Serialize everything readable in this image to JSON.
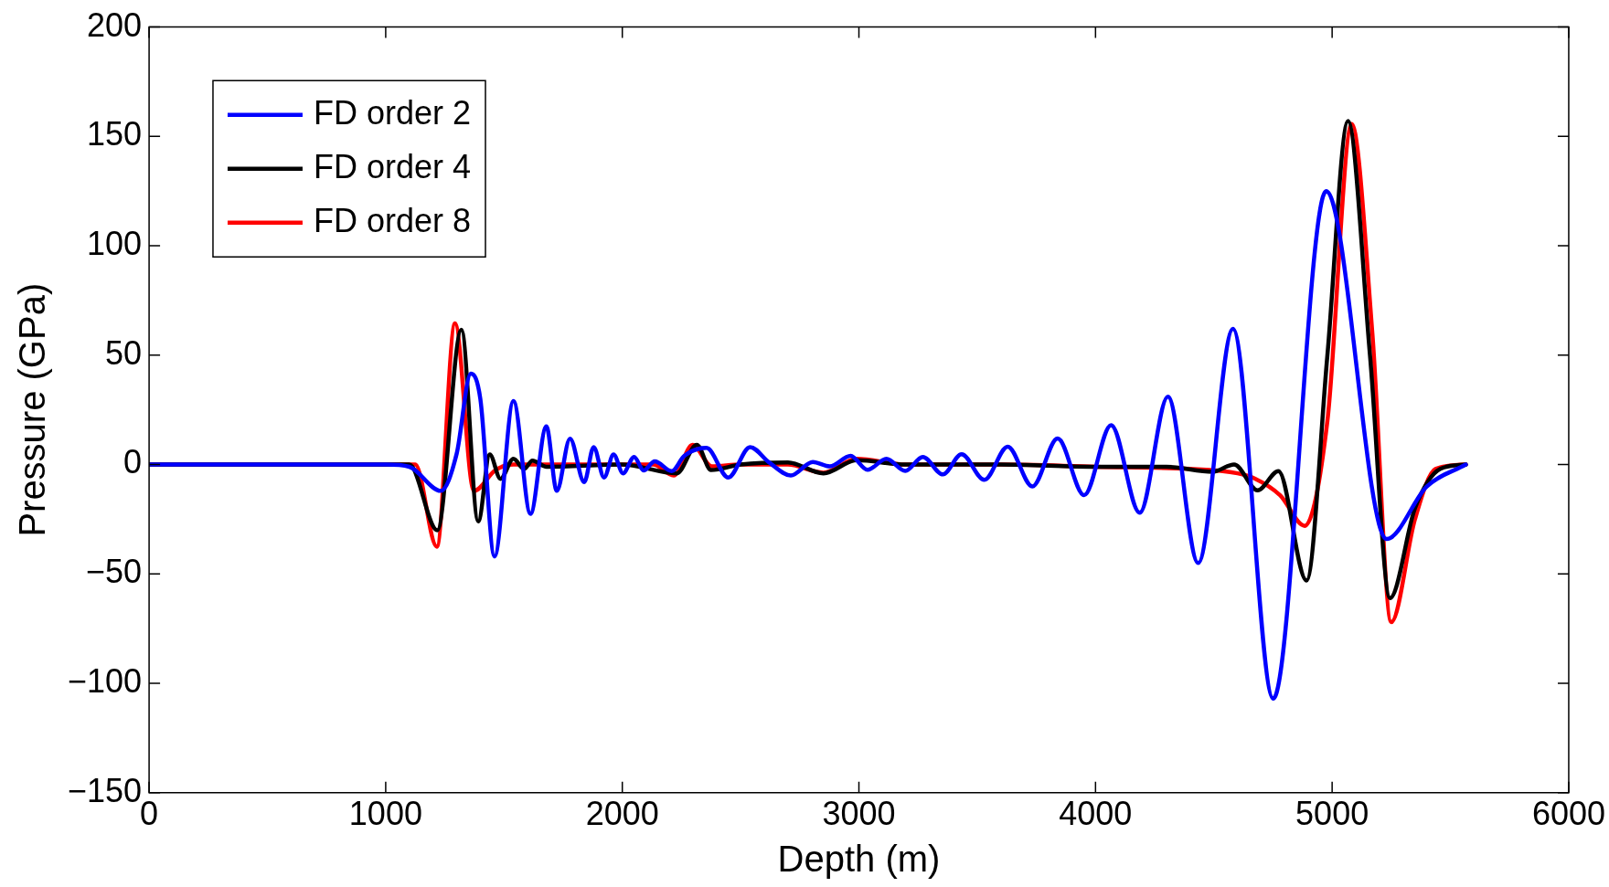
{
  "chart_data": {
    "type": "line",
    "xlabel": "Depth (m)",
    "ylabel": "Pressure (GPa)",
    "xlim": [
      0,
      6000
    ],
    "xticks": [
      0,
      1000,
      2000,
      3000,
      4000,
      5000,
      6000
    ],
    "ylim": [
      -150,
      200
    ],
    "yticks": [
      {
        "value": -150,
        "label": "−150"
      },
      {
        "value": -100,
        "label": "−100"
      },
      {
        "value": -50,
        "label": "−50"
      },
      0,
      50,
      100,
      150,
      200
    ],
    "grid": false,
    "legend": "top left",
    "marker": "none",
    "line_style": "solid",
    "series": [
      {
        "name": "FD order 2",
        "color": "#0000ff",
        "x": [
          0,
          1000,
          1100,
          1233,
          1300,
          1360,
          1400,
          1460,
          1540,
          1612,
          1679,
          1723,
          1779,
          1839,
          1879,
          1923,
          1963,
          2003,
          2050,
          2090,
          2137,
          2209,
          2261,
          2356,
          2448,
          2540,
          2620,
          2712,
          2805,
          2877,
          2965,
          3036,
          3116,
          3196,
          3270,
          3355,
          3434,
          3530,
          3629,
          3733,
          3840,
          3952,
          4066,
          4187,
          4306,
          4434,
          4581,
          4751,
          4975,
          5230,
          5400,
          5565
        ],
        "values": [
          0,
          0,
          -1,
          -12,
          5,
          41.6,
          30,
          -42,
          29,
          -22.5,
          17.5,
          -12,
          11.8,
          -8,
          8,
          -5.9,
          4.6,
          -4,
          3.5,
          -2.7,
          1.5,
          -3,
          3.9,
          7.6,
          -5.9,
          8,
          1,
          -5,
          1.2,
          -0.8,
          4,
          -2.4,
          2.6,
          -2.9,
          3.5,
          -4.5,
          4.7,
          -7,
          8.2,
          -10,
          11.9,
          -14,
          18,
          -22,
          31,
          -45,
          62,
          -107,
          125,
          -34,
          -10,
          0
        ]
      },
      {
        "name": "FD order 4",
        "color": "#000000",
        "x": [
          0,
          1100,
          1218,
          1320,
          1391,
          1440,
          1485,
          1540,
          1585,
          1620,
          1680,
          2000,
          2230,
          2315,
          2375,
          2500,
          2700,
          2850,
          2990,
          3200,
          3600,
          4000,
          4300,
          4494,
          4586,
          4685,
          4773,
          4892,
          4980,
          5067,
          5160,
          5245,
          5350,
          5457,
          5565
        ],
        "values": [
          0,
          0,
          -30,
          61.6,
          -26,
          4.6,
          -6.5,
          2.6,
          -2,
          1.8,
          -1,
          0,
          -4,
          9,
          -2.5,
          0,
          1,
          -4,
          2,
          0,
          0,
          -1,
          -1,
          -3.3,
          0,
          -11.8,
          -3,
          -53,
          50,
          157,
          50,
          -61,
          -20,
          -2,
          0
        ]
      },
      {
        "name": "FD order 8",
        "color": "#ff0000",
        "x": [
          0,
          1125,
          1216,
          1293,
          1373,
          1464,
          1540,
          2130,
          2217,
          2297,
          2378,
          2500,
          2700,
          2850,
          2990,
          3200,
          3600,
          4000,
          4400,
          4600,
          4672,
          4780,
          4884,
          4980,
          5083,
          5170,
          5250,
          5350,
          5437,
          5565
        ],
        "values": [
          0,
          0,
          -37.5,
          64.5,
          -12,
          -2.5,
          0,
          0,
          -5,
          9,
          -0.8,
          0,
          0,
          -3.7,
          2.6,
          0,
          0,
          -1,
          -2,
          -4,
          -6.3,
          -14,
          -28,
          20,
          155.7,
          60,
          -72,
          -25,
          -2,
          0
        ]
      }
    ]
  }
}
